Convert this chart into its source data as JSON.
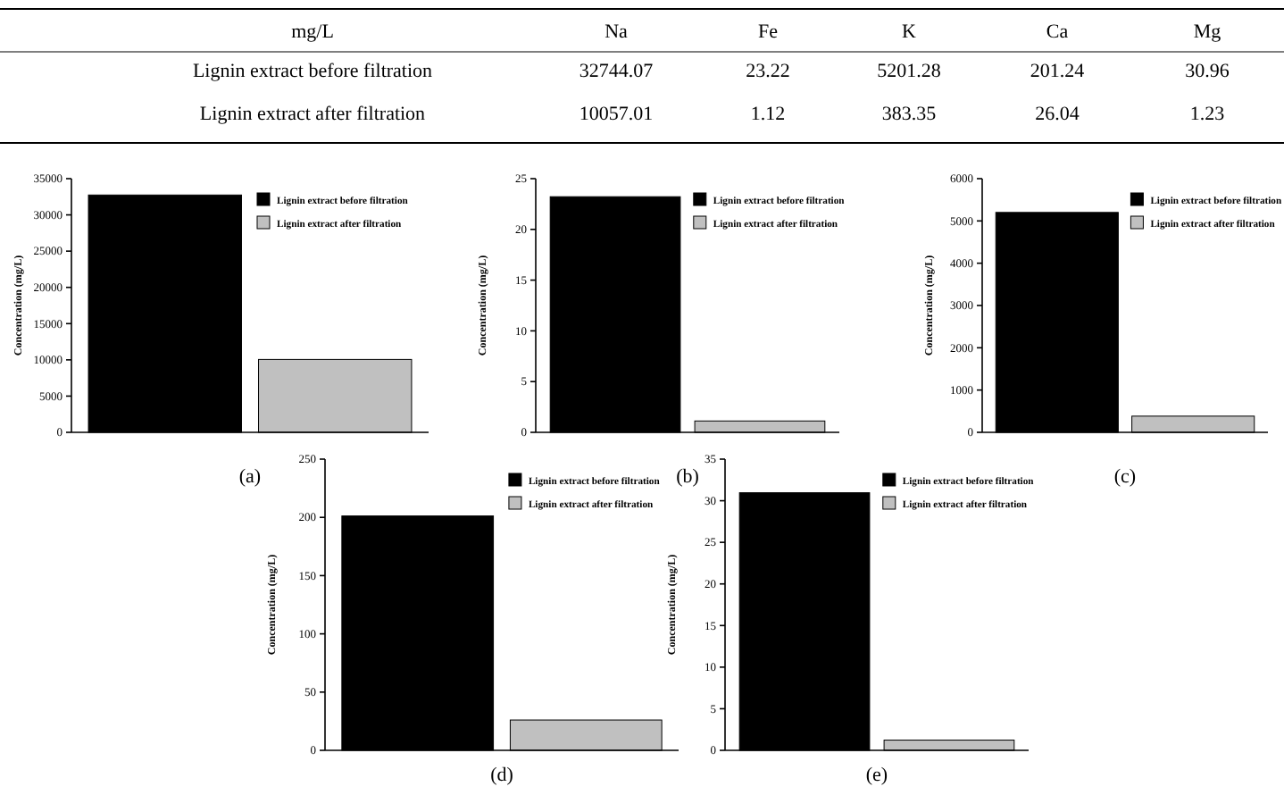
{
  "chart_data": [
    {
      "type": "other",
      "annotations": [
        "mg/L"
      ],
      "categories": [
        "Na",
        "Fe",
        "K",
        "Ca",
        "Mg"
      ],
      "y_categories": [
        "Lignin extract before filtration",
        "Lignin extract after filtration"
      ],
      "cell_labels": [
        [
          "32744.07",
          "23.22",
          "5201.28",
          "201.24",
          "30.96"
        ],
        [
          "10057.01",
          "1.12",
          "383.35",
          "26.04",
          "1.23"
        ]
      ]
    },
    {
      "type": "bar",
      "title": "(a)",
      "ylabel": "Concentration (mg/L)",
      "categories": [
        null,
        null
      ],
      "ylim": [
        0,
        35000
      ],
      "yticks": [
        0,
        5000,
        10000,
        15000,
        20000,
        25000,
        30000,
        35000
      ],
      "legend": "top right",
      "series": [
        {
          "name": "Lignin extract before filtration",
          "color": "#000000",
          "values": [
            32744.07,
            null
          ]
        },
        {
          "name": "Lignin extract after filtration",
          "color": "#c0c0c0",
          "values": [
            null,
            10057.01
          ]
        }
      ]
    },
    {
      "type": "bar",
      "title": "(b)",
      "ylabel": "Concentration (mg/L)",
      "categories": [
        null,
        null
      ],
      "ylim": [
        0,
        25
      ],
      "yticks": [
        0,
        5,
        10,
        15,
        20,
        25
      ],
      "legend": "top right",
      "series": [
        {
          "name": "Lignin extract before filtration",
          "color": "#000000",
          "values": [
            23.22,
            null
          ]
        },
        {
          "name": "Lignin extract after filtration",
          "color": "#c0c0c0",
          "values": [
            null,
            1.12
          ]
        }
      ]
    },
    {
      "type": "bar",
      "title": "(c)",
      "ylabel": "Concentration (mg/L)",
      "categories": [
        null,
        null
      ],
      "ylim": [
        0,
        6000
      ],
      "yticks": [
        0,
        1000,
        2000,
        3000,
        4000,
        5000,
        6000
      ],
      "legend": "top right",
      "series": [
        {
          "name": "Lignin extract before filtration",
          "color": "#000000",
          "values": [
            5201.28,
            null
          ]
        },
        {
          "name": "Lignin extract after filtration",
          "color": "#c0c0c0",
          "values": [
            null,
            383.35
          ]
        }
      ]
    },
    {
      "type": "bar",
      "title": "(d)",
      "ylabel": "Concentration (mg/L)",
      "categories": [
        null,
        null
      ],
      "ylim": [
        0,
        250
      ],
      "yticks": [
        0,
        50,
        100,
        150,
        200,
        250
      ],
      "legend": "top right",
      "series": [
        {
          "name": "Lignin extract before filtration",
          "color": "#000000",
          "values": [
            201.24,
            null
          ]
        },
        {
          "name": "Lignin extract after filtration",
          "color": "#c0c0c0",
          "values": [
            null,
            26.04
          ]
        }
      ]
    },
    {
      "type": "bar",
      "title": "(e)",
      "ylabel": "Concentration (mg/L)",
      "categories": [
        null,
        null
      ],
      "ylim": [
        0,
        35
      ],
      "yticks": [
        0,
        5,
        10,
        15,
        20,
        25,
        30,
        35
      ],
      "legend": "top right",
      "series": [
        {
          "name": "Lignin extract before filtration",
          "color": "#000000",
          "values": [
            30.96,
            null
          ]
        },
        {
          "name": "Lignin extract after filtration",
          "color": "#c0c0c0",
          "values": [
            null,
            1.23
          ]
        }
      ]
    }
  ]
}
